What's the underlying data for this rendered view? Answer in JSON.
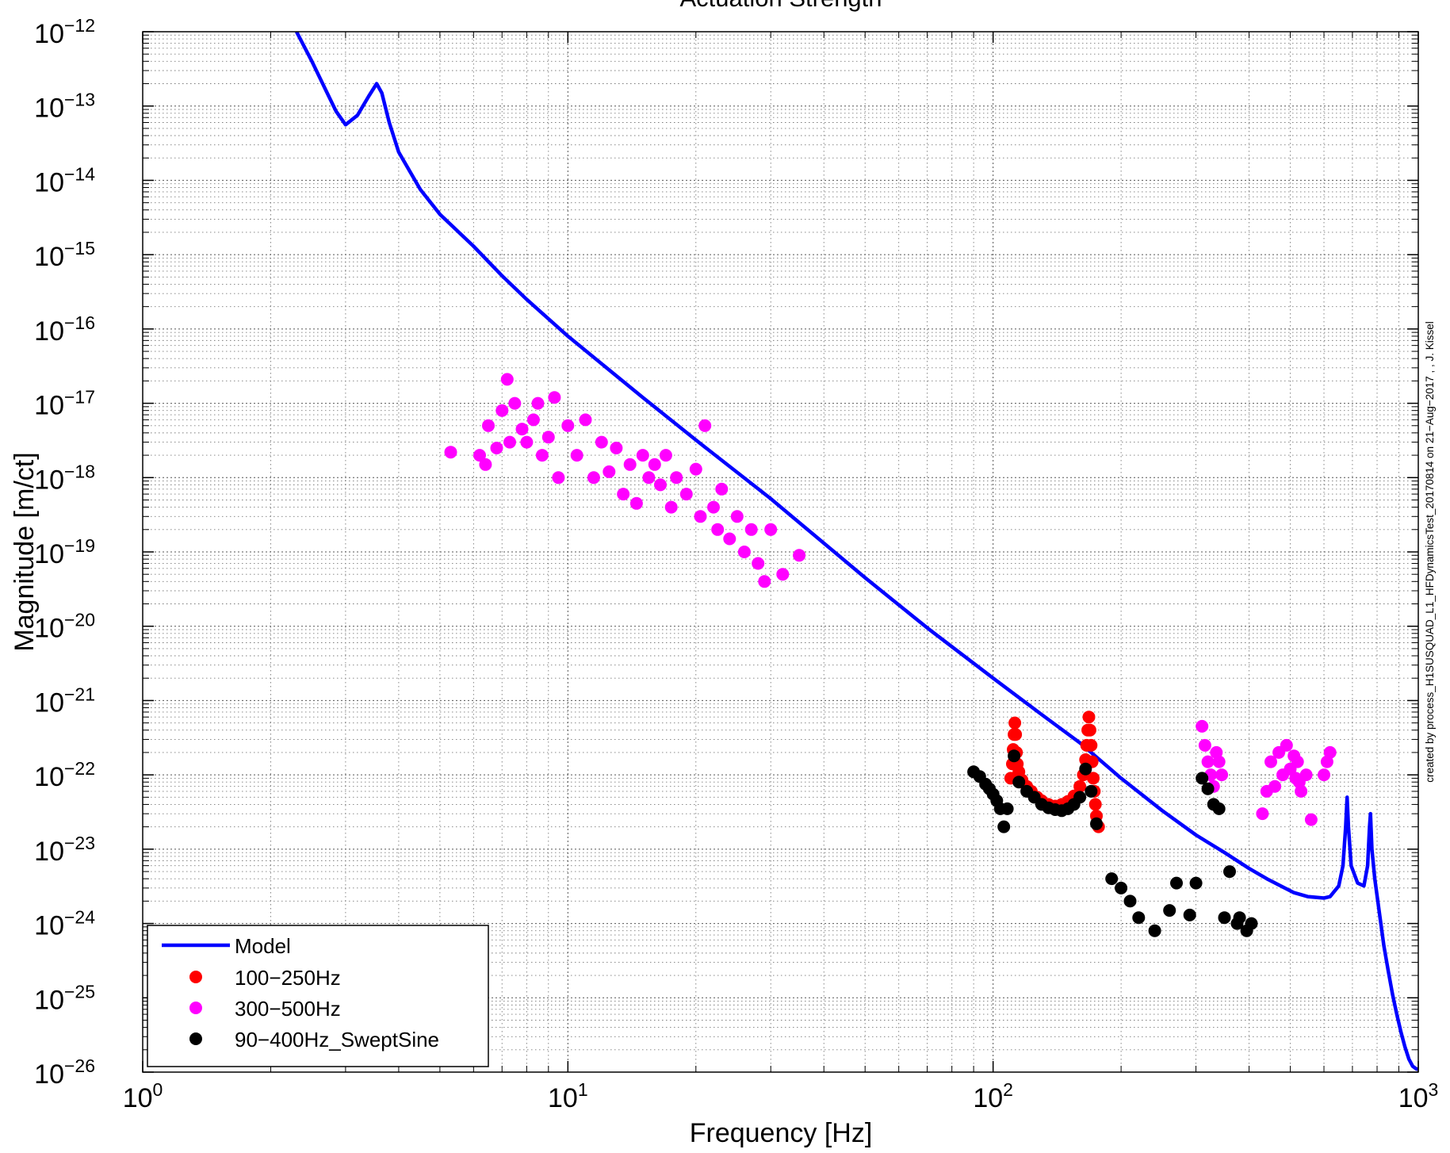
{
  "chart_data": {
    "type": "scatter",
    "title": "Actuation Strength",
    "xlabel": "Frequency [Hz]",
    "ylabel": "Magnitude [m/ct]",
    "xscale": "log",
    "yscale": "log",
    "xlim": [
      1,
      1000
    ],
    "ylim": [
      1e-26,
      1e-12
    ],
    "grid": true,
    "legend_position": "bottom-left",
    "x_ticks": [
      {
        "base": "10",
        "exp": "0"
      },
      {
        "base": "10",
        "exp": "1"
      },
      {
        "base": "10",
        "exp": "2"
      },
      {
        "base": "10",
        "exp": "3"
      }
    ],
    "y_ticks": [
      {
        "base": "10",
        "exp": "−12"
      },
      {
        "base": "10",
        "exp": "−13"
      },
      {
        "base": "10",
        "exp": "−14"
      },
      {
        "base": "10",
        "exp": "−15"
      },
      {
        "base": "10",
        "exp": "−16"
      },
      {
        "base": "10",
        "exp": "−17"
      },
      {
        "base": "10",
        "exp": "−18"
      },
      {
        "base": "10",
        "exp": "−19"
      },
      {
        "base": "10",
        "exp": "−20"
      },
      {
        "base": "10",
        "exp": "−21"
      },
      {
        "base": "10",
        "exp": "−22"
      },
      {
        "base": "10",
        "exp": "−23"
      },
      {
        "base": "10",
        "exp": "−24"
      },
      {
        "base": "10",
        "exp": "−25"
      },
      {
        "base": "10",
        "exp": "−26"
      }
    ],
    "side_annotation": "created by process_H1SUSQUAD_L1_HFDynamicsTest_20170814 on 21−Aug−2017 , , J. Kissel",
    "series": [
      {
        "name": "Model",
        "kind": "line",
        "color": "#0000ff",
        "points": [
          [
            2.3,
            1e-12
          ],
          [
            2.5,
            4e-13
          ],
          [
            2.7,
            1.6e-13
          ],
          [
            2.85,
            8.5e-14
          ],
          [
            3.0,
            5.6e-14
          ],
          [
            3.2,
            7.5e-14
          ],
          [
            3.4,
            1.35e-13
          ],
          [
            3.55,
            2e-13
          ],
          [
            3.65,
            1.5e-13
          ],
          [
            3.8,
            6e-14
          ],
          [
            4.0,
            2.4e-14
          ],
          [
            4.5,
            7.5e-15
          ],
          [
            5,
            3.5e-15
          ],
          [
            6,
            1.3e-15
          ],
          [
            7,
            5.2e-16
          ],
          [
            8,
            2.5e-16
          ],
          [
            10,
            8e-17
          ],
          [
            15,
            1.2e-17
          ],
          [
            20,
            3.2e-18
          ],
          [
            30,
            5.2e-19
          ],
          [
            50,
            4.5e-20
          ],
          [
            70,
            9.5e-21
          ],
          [
            100,
            2e-21
          ],
          [
            130,
            6.5e-22
          ],
          [
            160,
            2.7e-22
          ],
          [
            200,
            9e-23
          ],
          [
            250,
            3.3e-23
          ],
          [
            300,
            1.55e-23
          ],
          [
            350,
            9e-24
          ],
          [
            400,
            5.5e-24
          ],
          [
            440,
            4e-24
          ],
          [
            480,
            3.1e-24
          ],
          [
            510,
            2.6e-24
          ],
          [
            550,
            2.3e-24
          ],
          [
            600,
            2.2e-24
          ],
          [
            620,
            2.3e-24
          ],
          [
            650,
            3.2e-24
          ],
          [
            665,
            6e-24
          ],
          [
            675,
            2e-23
          ],
          [
            680,
            5e-23
          ],
          [
            685,
            2e-23
          ],
          [
            695,
            6e-24
          ],
          [
            720,
            3.5e-24
          ],
          [
            745,
            3.2e-24
          ],
          [
            760,
            6e-24
          ],
          [
            768,
            2e-23
          ],
          [
            772,
            3e-23
          ],
          [
            778,
            1e-23
          ],
          [
            790,
            4e-24
          ],
          [
            810,
            1.4e-24
          ],
          [
            830,
            5e-25
          ],
          [
            850,
            2.3e-25
          ],
          [
            870,
            1.1e-25
          ],
          [
            890,
            6e-26
          ],
          [
            910,
            3.5e-26
          ],
          [
            930,
            2.2e-26
          ],
          [
            950,
            1.5e-26
          ],
          [
            970,
            1.2e-26
          ],
          [
            990,
            1.1e-26
          ],
          [
            1000,
            1.1e-26
          ]
        ]
      },
      {
        "name": "100−250Hz",
        "kind": "markers",
        "color": "#ff0000",
        "points": [
          [
            110,
            9e-23
          ],
          [
            111,
            1.4e-22
          ],
          [
            111.5,
            2.2e-22
          ],
          [
            112,
            3.5e-22
          ],
          [
            112.5,
            5e-22
          ],
          [
            113,
            3.5e-22
          ],
          [
            113.5,
            2e-22
          ],
          [
            114,
            1.4e-22
          ],
          [
            115,
            1.1e-22
          ],
          [
            117,
            8.5e-23
          ],
          [
            120,
            7e-23
          ],
          [
            123,
            6e-23
          ],
          [
            127,
            5e-23
          ],
          [
            130,
            4.5e-23
          ],
          [
            135,
            4e-23
          ],
          [
            140,
            3.8e-23
          ],
          [
            145,
            4e-23
          ],
          [
            150,
            4.4e-23
          ],
          [
            155,
            5.2e-23
          ],
          [
            160,
            7e-23
          ],
          [
            163,
            1e-22
          ],
          [
            165,
            1.6e-22
          ],
          [
            166,
            2.5e-22
          ],
          [
            167,
            4e-22
          ],
          [
            168,
            6e-22
          ],
          [
            169,
            4e-22
          ],
          [
            170,
            2.5e-22
          ],
          [
            171,
            1.5e-22
          ],
          [
            172,
            9e-23
          ],
          [
            173,
            6e-23
          ],
          [
            174,
            4e-23
          ],
          [
            175,
            2.8e-23
          ],
          [
            177,
            2e-23
          ]
        ]
      },
      {
        "name": "300−500Hz",
        "kind": "markers",
        "color": "#ff00ff",
        "points": [
          [
            5.3,
            2.2e-18
          ],
          [
            6.2,
            2e-18
          ],
          [
            6.4,
            1.5e-18
          ],
          [
            6.5,
            5e-18
          ],
          [
            6.8,
            2.5e-18
          ],
          [
            7.0,
            8e-18
          ],
          [
            7.2,
            2.1e-17
          ],
          [
            7.3,
            3e-18
          ],
          [
            7.5,
            1e-17
          ],
          [
            7.8,
            4.5e-18
          ],
          [
            8.0,
            3e-18
          ],
          [
            8.3,
            6e-18
          ],
          [
            8.5,
            1e-17
          ],
          [
            8.7,
            2e-18
          ],
          [
            9.0,
            3.5e-18
          ],
          [
            9.3,
            1.2e-17
          ],
          [
            9.5,
            1e-18
          ],
          [
            10.0,
            5e-18
          ],
          [
            10.5,
            2e-18
          ],
          [
            11.0,
            6e-18
          ],
          [
            11.5,
            1e-18
          ],
          [
            12.0,
            3e-18
          ],
          [
            12.5,
            1.2e-18
          ],
          [
            13.0,
            2.5e-18
          ],
          [
            13.5,
            6e-19
          ],
          [
            14.0,
            1.5e-18
          ],
          [
            14.5,
            4.5e-19
          ],
          [
            15.0,
            2e-18
          ],
          [
            15.5,
            1e-18
          ],
          [
            16.0,
            1.5e-18
          ],
          [
            16.5,
            8e-19
          ],
          [
            17.0,
            2e-18
          ],
          [
            17.5,
            4e-19
          ],
          [
            18.0,
            1e-18
          ],
          [
            19.0,
            6e-19
          ],
          [
            20.0,
            1.3e-18
          ],
          [
            20.5,
            3e-19
          ],
          [
            21.0,
            5e-18
          ],
          [
            22.0,
            4e-19
          ],
          [
            22.5,
            2e-19
          ],
          [
            23.0,
            7e-19
          ],
          [
            24.0,
            1.5e-19
          ],
          [
            25.0,
            3e-19
          ],
          [
            26.0,
            1e-19
          ],
          [
            27.0,
            2e-19
          ],
          [
            28.0,
            7e-20
          ],
          [
            29.0,
            4e-20
          ],
          [
            30.0,
            2e-19
          ],
          [
            32.0,
            5e-20
          ],
          [
            35.0,
            9e-20
          ],
          [
            310,
            4.5e-22
          ],
          [
            315,
            2.5e-22
          ],
          [
            320,
            1.5e-22
          ],
          [
            325,
            1e-22
          ],
          [
            330,
            7e-23
          ],
          [
            335,
            2e-22
          ],
          [
            340,
            1.5e-22
          ],
          [
            345,
            1e-22
          ],
          [
            430,
            3e-23
          ],
          [
            440,
            6e-23
          ],
          [
            450,
            1.5e-22
          ],
          [
            460,
            7e-23
          ],
          [
            470,
            2e-22
          ],
          [
            480,
            1e-22
          ],
          [
            490,
            2.5e-22
          ],
          [
            500,
            1.2e-22
          ],
          [
            510,
            1.8e-22
          ],
          [
            515,
            9e-23
          ],
          [
            520,
            1.5e-22
          ],
          [
            525,
            8e-23
          ],
          [
            530,
            6e-23
          ],
          [
            545,
            1e-22
          ],
          [
            560,
            2.5e-23
          ],
          [
            600,
            1e-22
          ],
          [
            610,
            1.5e-22
          ],
          [
            620,
            2e-22
          ]
        ]
      },
      {
        "name": "90−400Hz_SweptSine",
        "kind": "markers",
        "color": "#000000",
        "points": [
          [
            90,
            1.1e-22
          ],
          [
            93,
            9.5e-23
          ],
          [
            96,
            7.5e-23
          ],
          [
            98,
            6.5e-23
          ],
          [
            100,
            5.5e-23
          ],
          [
            102,
            4.5e-23
          ],
          [
            104,
            3.5e-23
          ],
          [
            106,
            2e-23
          ],
          [
            108,
            3.5e-23
          ],
          [
            112,
            1.8e-22
          ],
          [
            115,
            8e-23
          ],
          [
            120,
            6e-23
          ],
          [
            125,
            5e-23
          ],
          [
            130,
            4e-23
          ],
          [
            135,
            3.6e-23
          ],
          [
            140,
            3.4e-23
          ],
          [
            145,
            3.3e-23
          ],
          [
            150,
            3.5e-23
          ],
          [
            155,
            4e-23
          ],
          [
            160,
            5e-23
          ],
          [
            165,
            1.2e-22
          ],
          [
            170,
            6e-23
          ],
          [
            175,
            2.2e-23
          ],
          [
            190,
            4e-24
          ],
          [
            200,
            3e-24
          ],
          [
            210,
            2e-24
          ],
          [
            220,
            1.2e-24
          ],
          [
            240,
            8e-25
          ],
          [
            260,
            1.5e-24
          ],
          [
            270,
            3.5e-24
          ],
          [
            290,
            1.3e-24
          ],
          [
            300,
            3.5e-24
          ],
          [
            310,
            9e-23
          ],
          [
            320,
            6.5e-23
          ],
          [
            330,
            4e-23
          ],
          [
            340,
            3.5e-23
          ],
          [
            350,
            1.2e-24
          ],
          [
            360,
            5e-24
          ],
          [
            375,
            1e-24
          ],
          [
            380,
            1.2e-24
          ],
          [
            395,
            8e-25
          ],
          [
            405,
            1e-24
          ]
        ]
      }
    ]
  }
}
